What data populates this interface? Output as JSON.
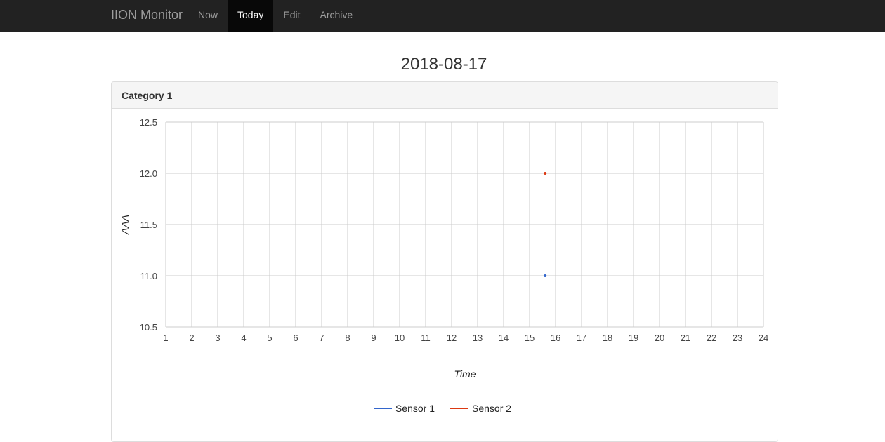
{
  "navbar": {
    "brand": "IION Monitor",
    "items": [
      {
        "label": "Now",
        "active": false
      },
      {
        "label": "Today",
        "active": true
      },
      {
        "label": "Edit",
        "active": false
      },
      {
        "label": "Archive",
        "active": false
      }
    ]
  },
  "page_title": "2018-08-17",
  "panel": {
    "heading": "Category 1"
  },
  "chart_data": {
    "type": "scatter",
    "title": "",
    "xlabel": "Time",
    "ylabel": "AAA",
    "xlim": [
      1,
      24
    ],
    "ylim": [
      10.5,
      12.5
    ],
    "x_ticks": [
      1,
      2,
      3,
      4,
      5,
      6,
      7,
      8,
      9,
      10,
      11,
      12,
      13,
      14,
      15,
      16,
      17,
      18,
      19,
      20,
      21,
      22,
      23,
      24
    ],
    "y_ticks": [
      "10.5",
      "11.0",
      "11.5",
      "12.0",
      "12.5"
    ],
    "grid": true,
    "legend_position": "bottom",
    "series": [
      {
        "name": "Sensor 1",
        "color": "#3366cc",
        "points": [
          {
            "x": 15.6,
            "y": 11.0
          }
        ]
      },
      {
        "name": "Sensor 2",
        "color": "#dc3912",
        "points": [
          {
            "x": 15.6,
            "y": 12.0
          }
        ]
      }
    ]
  }
}
